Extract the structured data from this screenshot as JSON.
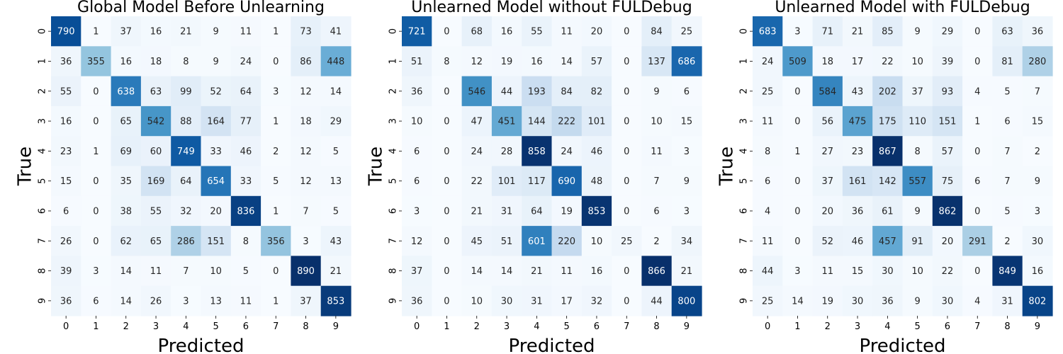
{
  "chart_data": [
    {
      "type": "heatmap",
      "title": "Global Model Before Unlearning",
      "xlabel": "Predicted",
      "ylabel": "True",
      "x_ticks": [
        "0",
        "1",
        "2",
        "3",
        "4",
        "5",
        "6",
        "7",
        "8",
        "9"
      ],
      "y_ticks": [
        "0",
        "1",
        "2",
        "3",
        "4",
        "5",
        "6",
        "7",
        "8",
        "9"
      ],
      "colormap": "Blues",
      "colorbar": false,
      "matrix": [
        [
          790,
          1,
          37,
          16,
          21,
          9,
          11,
          1,
          73,
          41
        ],
        [
          36,
          355,
          16,
          18,
          8,
          9,
          24,
          0,
          86,
          448
        ],
        [
          55,
          0,
          638,
          63,
          99,
          52,
          64,
          3,
          12,
          14
        ],
        [
          16,
          0,
          65,
          542,
          88,
          164,
          77,
          1,
          18,
          29
        ],
        [
          23,
          1,
          69,
          60,
          749,
          33,
          46,
          2,
          12,
          5
        ],
        [
          15,
          0,
          35,
          169,
          64,
          654,
          33,
          5,
          12,
          13
        ],
        [
          6,
          0,
          38,
          55,
          32,
          20,
          836,
          1,
          7,
          5
        ],
        [
          26,
          0,
          62,
          65,
          286,
          151,
          8,
          356,
          3,
          43
        ],
        [
          39,
          3,
          14,
          11,
          7,
          10,
          5,
          0,
          890,
          21
        ],
        [
          36,
          6,
          14,
          26,
          3,
          13,
          11,
          1,
          37,
          853
        ]
      ]
    },
    {
      "type": "heatmap",
      "title": "Unlearned Model without FULDebug",
      "xlabel": "Predicted",
      "ylabel": "True",
      "x_ticks": [
        "0",
        "1",
        "2",
        "3",
        "4",
        "5",
        "6",
        "7",
        "8",
        "9"
      ],
      "y_ticks": [
        "0",
        "1",
        "2",
        "3",
        "4",
        "5",
        "6",
        "7",
        "8",
        "9"
      ],
      "colormap": "Blues",
      "colorbar": false,
      "matrix": [
        [
          721,
          0,
          68,
          16,
          55,
          11,
          20,
          0,
          84,
          25
        ],
        [
          51,
          8,
          12,
          19,
          16,
          14,
          57,
          0,
          137,
          686
        ],
        [
          36,
          0,
          546,
          44,
          193,
          84,
          82,
          0,
          9,
          6
        ],
        [
          10,
          0,
          47,
          451,
          144,
          222,
          101,
          0,
          10,
          15
        ],
        [
          6,
          0,
          24,
          28,
          858,
          24,
          46,
          0,
          11,
          3
        ],
        [
          6,
          0,
          22,
          101,
          117,
          690,
          48,
          0,
          7,
          9
        ],
        [
          3,
          0,
          21,
          31,
          64,
          19,
          853,
          0,
          6,
          3
        ],
        [
          12,
          0,
          45,
          51,
          601,
          220,
          10,
          25,
          2,
          34
        ],
        [
          37,
          0,
          14,
          14,
          21,
          11,
          16,
          0,
          866,
          21
        ],
        [
          36,
          0,
          10,
          30,
          31,
          17,
          32,
          0,
          44,
          800
        ]
      ]
    },
    {
      "type": "heatmap",
      "title": "Unlearned Model with FULDebug",
      "xlabel": "Predicted",
      "ylabel": "True",
      "x_ticks": [
        "0",
        "1",
        "2",
        "3",
        "4",
        "5",
        "6",
        "7",
        "8",
        "9"
      ],
      "y_ticks": [
        "0",
        "1",
        "2",
        "3",
        "4",
        "5",
        "6",
        "7",
        "8",
        "9"
      ],
      "colormap": "Blues",
      "colorbar": false,
      "matrix": [
        [
          683,
          3,
          71,
          21,
          85,
          9,
          29,
          0,
          63,
          36
        ],
        [
          24,
          509,
          18,
          17,
          22,
          10,
          39,
          0,
          81,
          280
        ],
        [
          25,
          0,
          584,
          43,
          202,
          37,
          93,
          4,
          5,
          7
        ],
        [
          11,
          0,
          56,
          475,
          175,
          110,
          151,
          1,
          6,
          15
        ],
        [
          8,
          1,
          27,
          23,
          867,
          8,
          57,
          0,
          7,
          2
        ],
        [
          6,
          0,
          37,
          161,
          142,
          557,
          75,
          6,
          7,
          9
        ],
        [
          4,
          0,
          20,
          36,
          61,
          9,
          862,
          0,
          5,
          3
        ],
        [
          11,
          0,
          52,
          46,
          457,
          91,
          20,
          291,
          2,
          30
        ],
        [
          44,
          3,
          11,
          15,
          30,
          10,
          22,
          0,
          849,
          16
        ],
        [
          25,
          14,
          19,
          30,
          36,
          9,
          30,
          4,
          31,
          802
        ]
      ]
    }
  ]
}
